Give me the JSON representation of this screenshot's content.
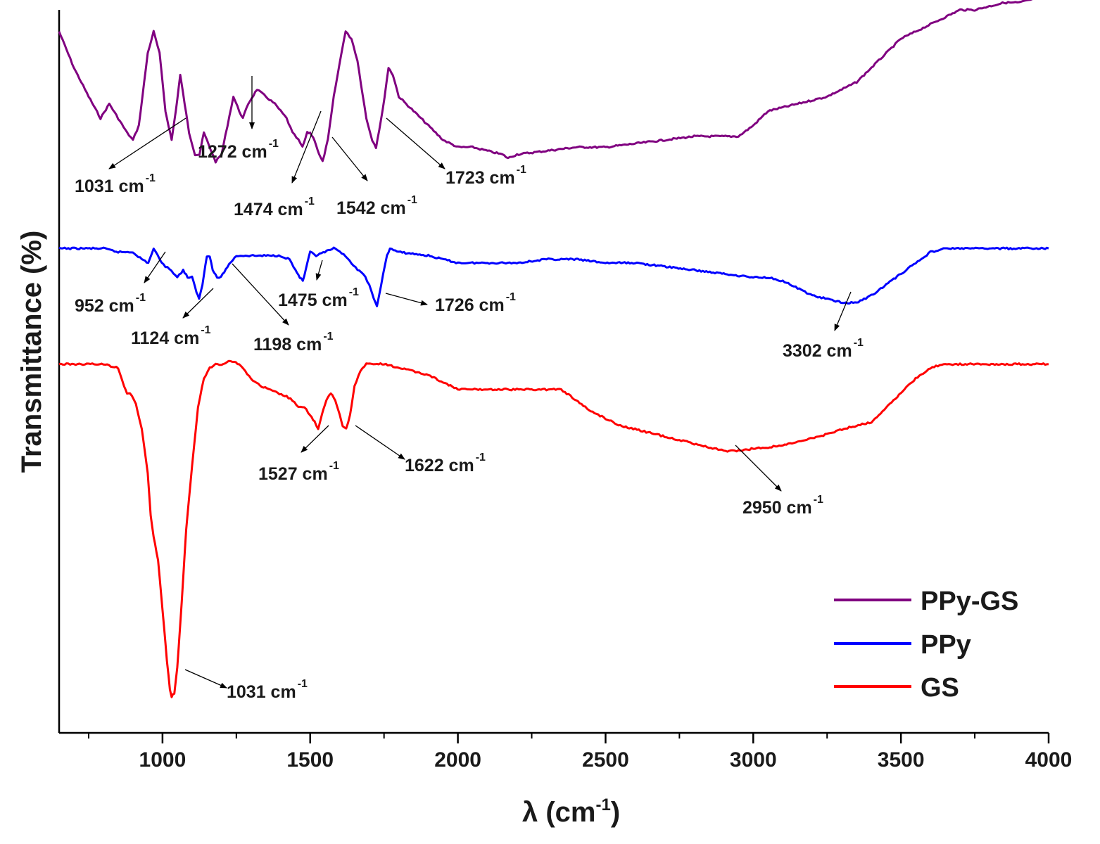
{
  "chart_data": {
    "type": "line",
    "title": "",
    "xlabel": "λ (cm⁻¹)",
    "xlabel_main": "λ (cm",
    "xlabel_sup": "-1",
    "xlabel_end": ")",
    "ylabel": "Transmittance (%)",
    "xlim": [
      650,
      4000
    ],
    "ylim": [
      0,
      100
    ],
    "x_ticks": [
      1000,
      1500,
      2000,
      2500,
      3000,
      3500,
      4000
    ],
    "x_tick_labels": [
      "1000",
      "1500",
      "2000",
      "2500",
      "3000",
      "3500",
      "4000"
    ],
    "y_ticks_shown": false,
    "legend_position": "bottom-right",
    "series": [
      {
        "name": "PPy-GS",
        "color": "#800080",
        "points": [
          [
            650,
            97
          ],
          [
            700,
            92
          ],
          [
            750,
            88
          ],
          [
            790,
            85
          ],
          [
            820,
            87
          ],
          [
            850,
            85
          ],
          [
            880,
            83
          ],
          [
            900,
            82
          ],
          [
            920,
            84
          ],
          [
            950,
            94
          ],
          [
            970,
            97
          ],
          [
            990,
            94
          ],
          [
            1010,
            86
          ],
          [
            1031,
            82
          ],
          [
            1045,
            86
          ],
          [
            1060,
            91
          ],
          [
            1075,
            87
          ],
          [
            1090,
            83
          ],
          [
            1110,
            80
          ],
          [
            1125,
            80
          ],
          [
            1140,
            83
          ],
          [
            1150,
            82
          ],
          [
            1160,
            81
          ],
          [
            1180,
            79
          ],
          [
            1200,
            80
          ],
          [
            1220,
            84
          ],
          [
            1240,
            88
          ],
          [
            1260,
            86
          ],
          [
            1272,
            85
          ],
          [
            1290,
            87
          ],
          [
            1320,
            89
          ],
          [
            1350,
            88
          ],
          [
            1380,
            87
          ],
          [
            1400,
            86
          ],
          [
            1420,
            85
          ],
          [
            1440,
            83
          ],
          [
            1460,
            82
          ],
          [
            1474,
            81
          ],
          [
            1490,
            83
          ],
          [
            1500,
            83
          ],
          [
            1515,
            82
          ],
          [
            1530,
            80
          ],
          [
            1542,
            79
          ],
          [
            1560,
            82
          ],
          [
            1580,
            88
          ],
          [
            1610,
            95
          ],
          [
            1620,
            97
          ],
          [
            1640,
            96
          ],
          [
            1660,
            93
          ],
          [
            1690,
            85
          ],
          [
            1710,
            82
          ],
          [
            1723,
            81
          ],
          [
            1745,
            86
          ],
          [
            1765,
            92
          ],
          [
            1780,
            91
          ],
          [
            1800,
            88
          ],
          [
            1850,
            86
          ],
          [
            1900,
            84
          ],
          [
            1950,
            82
          ],
          [
            2000,
            81
          ],
          [
            2050,
            81
          ],
          [
            2100,
            80.5
          ],
          [
            2150,
            80
          ],
          [
            2170,
            79.5
          ],
          [
            2200,
            80
          ],
          [
            2300,
            80.5
          ],
          [
            2400,
            81
          ],
          [
            2500,
            81
          ],
          [
            2600,
            81.5
          ],
          [
            2700,
            82
          ],
          [
            2800,
            82.5
          ],
          [
            2900,
            82.5
          ],
          [
            2950,
            82.5
          ],
          [
            3000,
            84
          ],
          [
            3050,
            86
          ],
          [
            3100,
            86.5
          ],
          [
            3150,
            87
          ],
          [
            3200,
            87.5
          ],
          [
            3250,
            88
          ],
          [
            3300,
            89
          ],
          [
            3350,
            90
          ],
          [
            3400,
            92
          ],
          [
            3450,
            94
          ],
          [
            3500,
            96
          ],
          [
            3550,
            97
          ],
          [
            3600,
            98
          ],
          [
            3650,
            99
          ],
          [
            3700,
            100
          ],
          [
            3750,
            100
          ],
          [
            3800,
            100.5
          ],
          [
            3850,
            101
          ],
          [
            3900,
            101
          ],
          [
            3950,
            101.5
          ],
          [
            4000,
            102
          ]
        ]
      },
      {
        "name": "PPy",
        "color": "#0000ff",
        "points": [
          [
            650,
            67
          ],
          [
            700,
            67
          ],
          [
            800,
            67
          ],
          [
            850,
            66.5
          ],
          [
            900,
            66.5
          ],
          [
            930,
            65.5
          ],
          [
            952,
            65
          ],
          [
            970,
            67
          ],
          [
            990,
            65.5
          ],
          [
            1010,
            64.5
          ],
          [
            1030,
            64
          ],
          [
            1050,
            63
          ],
          [
            1070,
            64
          ],
          [
            1085,
            63
          ],
          [
            1100,
            63
          ],
          [
            1115,
            61
          ],
          [
            1124,
            60
          ],
          [
            1135,
            62
          ],
          [
            1150,
            66
          ],
          [
            1160,
            66
          ],
          [
            1170,
            64
          ],
          [
            1185,
            63
          ],
          [
            1198,
            63
          ],
          [
            1220,
            64.5
          ],
          [
            1250,
            66
          ],
          [
            1300,
            66
          ],
          [
            1350,
            66
          ],
          [
            1400,
            66
          ],
          [
            1430,
            65.5
          ],
          [
            1450,
            64
          ],
          [
            1465,
            63
          ],
          [
            1475,
            62.5
          ],
          [
            1485,
            64
          ],
          [
            1500,
            66.5
          ],
          [
            1520,
            66
          ],
          [
            1550,
            66.5
          ],
          [
            1580,
            67
          ],
          [
            1600,
            66.5
          ],
          [
            1620,
            66
          ],
          [
            1640,
            65
          ],
          [
            1660,
            64
          ],
          [
            1680,
            63.5
          ],
          [
            1700,
            62
          ],
          [
            1715,
            60
          ],
          [
            1726,
            59
          ],
          [
            1740,
            62
          ],
          [
            1760,
            66
          ],
          [
            1770,
            67
          ],
          [
            1800,
            66.5
          ],
          [
            1900,
            66
          ],
          [
            2000,
            65
          ],
          [
            2050,
            65
          ],
          [
            2100,
            65
          ],
          [
            2150,
            65
          ],
          [
            2200,
            65
          ],
          [
            2300,
            65.5
          ],
          [
            2350,
            65.5
          ],
          [
            2400,
            65.5
          ],
          [
            2500,
            65
          ],
          [
            2600,
            65
          ],
          [
            2700,
            64.5
          ],
          [
            2800,
            64
          ],
          [
            2900,
            63.5
          ],
          [
            3000,
            63
          ],
          [
            3050,
            63
          ],
          [
            3100,
            62.5
          ],
          [
            3150,
            61.5
          ],
          [
            3200,
            60.5
          ],
          [
            3250,
            60
          ],
          [
            3302,
            59.5
          ],
          [
            3350,
            59.5
          ],
          [
            3400,
            60.5
          ],
          [
            3450,
            62
          ],
          [
            3500,
            63.5
          ],
          [
            3550,
            65
          ],
          [
            3600,
            66.5
          ],
          [
            3650,
            67
          ],
          [
            3700,
            67
          ],
          [
            3800,
            67
          ],
          [
            3900,
            67
          ],
          [
            4000,
            67
          ]
        ]
      },
      {
        "name": "GS",
        "color": "#ff0000",
        "points": [
          [
            650,
            51
          ],
          [
            700,
            51
          ],
          [
            750,
            51
          ],
          [
            800,
            51
          ],
          [
            850,
            50.5
          ],
          [
            870,
            48
          ],
          [
            880,
            47
          ],
          [
            890,
            47
          ],
          [
            910,
            45.5
          ],
          [
            930,
            42
          ],
          [
            950,
            36
          ],
          [
            960,
            30
          ],
          [
            970,
            27
          ],
          [
            985,
            24
          ],
          [
            1000,
            17
          ],
          [
            1015,
            10
          ],
          [
            1025,
            6
          ],
          [
            1031,
            5
          ],
          [
            1040,
            5.5
          ],
          [
            1050,
            9
          ],
          [
            1065,
            18
          ],
          [
            1080,
            28
          ],
          [
            1100,
            37
          ],
          [
            1120,
            45
          ],
          [
            1140,
            49
          ],
          [
            1160,
            50.5
          ],
          [
            1180,
            51
          ],
          [
            1200,
            51
          ],
          [
            1230,
            51.5
          ],
          [
            1260,
            51
          ],
          [
            1280,
            50
          ],
          [
            1300,
            49
          ],
          [
            1330,
            48
          ],
          [
            1360,
            47.5
          ],
          [
            1390,
            47
          ],
          [
            1420,
            46.5
          ],
          [
            1440,
            46
          ],
          [
            1460,
            45
          ],
          [
            1480,
            45
          ],
          [
            1500,
            44
          ],
          [
            1515,
            43
          ],
          [
            1527,
            42
          ],
          [
            1540,
            44
          ],
          [
            1555,
            46
          ],
          [
            1570,
            47
          ],
          [
            1585,
            46
          ],
          [
            1600,
            44
          ],
          [
            1610,
            42.5
          ],
          [
            1622,
            42
          ],
          [
            1635,
            44
          ],
          [
            1650,
            48
          ],
          [
            1670,
            50
          ],
          [
            1690,
            51
          ],
          [
            1720,
            51
          ],
          [
            1750,
            51
          ],
          [
            1800,
            50.5
          ],
          [
            1850,
            50
          ],
          [
            1900,
            49.5
          ],
          [
            1950,
            48.5
          ],
          [
            2000,
            47.5
          ],
          [
            2050,
            47.5
          ],
          [
            2100,
            47.5
          ],
          [
            2150,
            47.5
          ],
          [
            2200,
            47.5
          ],
          [
            2250,
            47.5
          ],
          [
            2300,
            47.5
          ],
          [
            2350,
            47.5
          ],
          [
            2400,
            46
          ],
          [
            2450,
            44.5
          ],
          [
            2500,
            43.5
          ],
          [
            2550,
            42.5
          ],
          [
            2600,
            42
          ],
          [
            2650,
            41.5
          ],
          [
            2700,
            41
          ],
          [
            2750,
            40.5
          ],
          [
            2800,
            40
          ],
          [
            2850,
            39.5
          ],
          [
            2900,
            39
          ],
          [
            2950,
            39
          ],
          [
            3000,
            39.3
          ],
          [
            3050,
            39.5
          ],
          [
            3100,
            39.8
          ],
          [
            3150,
            40.2
          ],
          [
            3200,
            40.8
          ],
          [
            3250,
            41.3
          ],
          [
            3300,
            42
          ],
          [
            3350,
            42.5
          ],
          [
            3400,
            43
          ],
          [
            3450,
            45
          ],
          [
            3500,
            47
          ],
          [
            3550,
            49
          ],
          [
            3600,
            50.5
          ],
          [
            3650,
            51
          ],
          [
            3700,
            51
          ],
          [
            3800,
            51
          ],
          [
            3900,
            51
          ],
          [
            4000,
            51
          ]
        ]
      }
    ],
    "annotations": [
      {
        "series": "PPy-GS",
        "wavenumber": 1031,
        "value": "1031 cm",
        "sup": "-1"
      },
      {
        "series": "PPy-GS",
        "wavenumber": 1272,
        "value": "1272 cm",
        "sup": "-1"
      },
      {
        "series": "PPy-GS",
        "wavenumber": 1474,
        "value": "1474 cm",
        "sup": "-1"
      },
      {
        "series": "PPy-GS",
        "wavenumber": 1542,
        "value": "1542 cm",
        "sup": "-1"
      },
      {
        "series": "PPy-GS",
        "wavenumber": 1723,
        "value": "1723 cm",
        "sup": "-1"
      },
      {
        "series": "PPy",
        "wavenumber": 952,
        "value": "952 cm",
        "sup": "-1"
      },
      {
        "series": "PPy",
        "wavenumber": 1124,
        "value": "1124 cm",
        "sup": "-1"
      },
      {
        "series": "PPy",
        "wavenumber": 1198,
        "value": "1198 cm",
        "sup": "-1"
      },
      {
        "series": "PPy",
        "wavenumber": 1475,
        "value": "1475 cm",
        "sup": "-1"
      },
      {
        "series": "PPy",
        "wavenumber": 1726,
        "value": "1726 cm",
        "sup": "-1"
      },
      {
        "series": "PPy",
        "wavenumber": 3302,
        "value": "3302 cm",
        "sup": "-1"
      },
      {
        "series": "GS",
        "wavenumber": 1031,
        "value": "1031 cm",
        "sup": "-1"
      },
      {
        "series": "GS",
        "wavenumber": 1527,
        "value": "1527 cm",
        "sup": "-1"
      },
      {
        "series": "GS",
        "wavenumber": 1622,
        "value": "1622 cm",
        "sup": "-1"
      },
      {
        "series": "GS",
        "wavenumber": 2950,
        "value": "2950 cm",
        "sup": "-1"
      }
    ]
  }
}
